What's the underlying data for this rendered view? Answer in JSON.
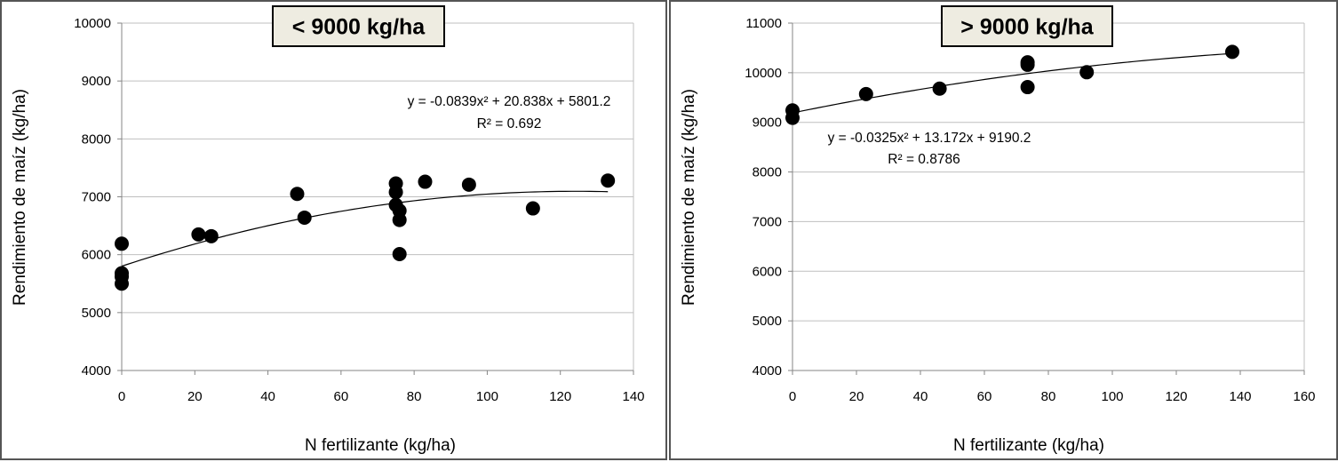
{
  "chart_data": [
    {
      "type": "scatter",
      "title": "< 9000 kg/ha",
      "xlabel": "N fertilizante (kg/ha)",
      "ylabel": "Rendimiento de maíz (kg/ha)",
      "xlim": [
        0,
        140
      ],
      "ylim": [
        4000,
        10000
      ],
      "xticks": [
        0,
        20,
        40,
        60,
        80,
        100,
        120,
        140
      ],
      "yticks": [
        4000,
        5000,
        6000,
        7000,
        8000,
        9000,
        10000
      ],
      "grid": "horizontal",
      "equation": "y = -0.0839x² + 20.838x + 5801.2",
      "r2": "R² = 0.692",
      "trend": {
        "a": -0.0839,
        "b": 20.838,
        "c": 5801.2,
        "x_range": [
          0,
          133
        ]
      },
      "points": [
        {
          "x": 0,
          "y": 6190
        },
        {
          "x": 0,
          "y": 5680
        },
        {
          "x": 0,
          "y": 5620
        },
        {
          "x": 0,
          "y": 5500
        },
        {
          "x": 21,
          "y": 6350
        },
        {
          "x": 24.5,
          "y": 6320
        },
        {
          "x": 48,
          "y": 7050
        },
        {
          "x": 50,
          "y": 6640
        },
        {
          "x": 75,
          "y": 7230
        },
        {
          "x": 75,
          "y": 7080
        },
        {
          "x": 75,
          "y": 6860
        },
        {
          "x": 76,
          "y": 6760
        },
        {
          "x": 76,
          "y": 6600
        },
        {
          "x": 76,
          "y": 6010
        },
        {
          "x": 83,
          "y": 7260
        },
        {
          "x": 95,
          "y": 7210
        },
        {
          "x": 112.5,
          "y": 6800
        },
        {
          "x": 133,
          "y": 7280
        }
      ]
    },
    {
      "type": "scatter",
      "title": "> 9000 kg/ha",
      "xlabel": "N fertilizante (kg/ha)",
      "ylabel": "Rendimiento de maíz (kg/ha)",
      "xlim": [
        0,
        160
      ],
      "ylim": [
        4000,
        11000
      ],
      "xticks": [
        0,
        20,
        40,
        60,
        80,
        100,
        120,
        140,
        160
      ],
      "yticks": [
        4000,
        5000,
        6000,
        7000,
        8000,
        9000,
        10000,
        11000
      ],
      "grid": "horizontal",
      "equation": "y = -0.0325x² + 13.172x + 9190.2",
      "r2": "R² = 0.8786",
      "trend": {
        "a": -0.0325,
        "b": 13.172,
        "c": 9190.2,
        "x_range": [
          0,
          137.5
        ]
      },
      "points": [
        {
          "x": 0,
          "y": 9240
        },
        {
          "x": 0,
          "y": 9090
        },
        {
          "x": 23,
          "y": 9570
        },
        {
          "x": 46,
          "y": 9680
        },
        {
          "x": 73.5,
          "y": 10210
        },
        {
          "x": 73.5,
          "y": 10160
        },
        {
          "x": 73.5,
          "y": 9710
        },
        {
          "x": 92,
          "y": 10010
        },
        {
          "x": 137.5,
          "y": 10420
        }
      ]
    }
  ]
}
